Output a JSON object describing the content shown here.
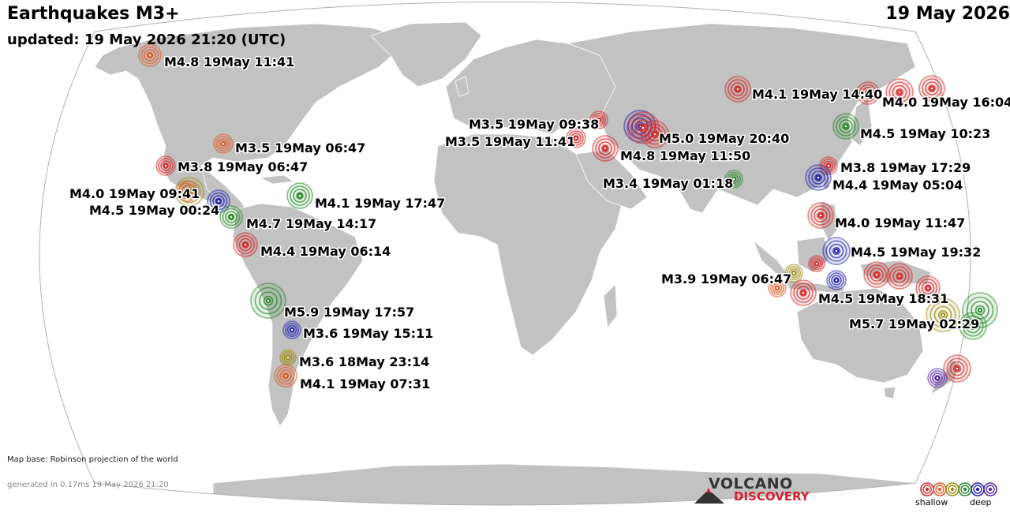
{
  "header": {
    "title": "Earthquakes M3+",
    "date": "19 May 2026",
    "updated": "updated: 19 May 2026 21:20 (UTC)"
  },
  "footer": {
    "map_base": "Map base: Robinson projection of the world",
    "generated": "generated in 0.17ms 19 May 2026 21:20"
  },
  "logo": {
    "top": "VOLCANO",
    "bottom": "DISCOVERY"
  },
  "legend": {
    "shallow": "shallow",
    "deep": "deep",
    "colors": [
      "#d42a2a",
      "#e05a2a",
      "#9a8a10",
      "#2a8a2a",
      "#2424b0",
      "#5a2aa0"
    ]
  },
  "colors": {
    "land": "#c2c2c2",
    "ocean": "#ffffff",
    "border": "#ffffff",
    "red": "#d42a2a",
    "orange": "#e05a2a",
    "olive": "#9a8a10",
    "green": "#2a8a2a",
    "blue": "#2424b0",
    "purple": "#5a2aa0"
  },
  "quakes": [
    {
      "label": "M4.8 19May 11:41",
      "depth_color": "orange"
    },
    {
      "label": "M3.5 19May 06:47",
      "depth_color": "orange"
    },
    {
      "label": "M3.8 19May 06:47",
      "depth_color": "red"
    },
    {
      "label": "M4.0 19May 09:41",
      "depth_color": "orange"
    },
    {
      "label": "M4.5 19May 00:24",
      "depth_color": "blue"
    },
    {
      "label": "M4.1 19May 17:47",
      "depth_color": "green"
    },
    {
      "label": "M4.7 19May 14:17",
      "depth_color": "green"
    },
    {
      "label": "M4.4 19May 06:14",
      "depth_color": "red"
    },
    {
      "label": "M5.9 19May 17:57",
      "depth_color": "green"
    },
    {
      "label": "M3.6 19May 15:11",
      "depth_color": "blue"
    },
    {
      "label": "M3.6 18May 23:14",
      "depth_color": "olive"
    },
    {
      "label": "M4.1 19May 07:31",
      "depth_color": "orange"
    },
    {
      "label": "M3.5 19May 09:38",
      "depth_color": "red"
    },
    {
      "label": "M3.5 19May 11:41",
      "depth_color": "red"
    },
    {
      "label": "M5.0 19May 20:40",
      "depth_color": "red"
    },
    {
      "label": "M4.8 19May 11:50",
      "depth_color": "red"
    },
    {
      "label": "M3.4 19May 01:18",
      "depth_color": "green"
    },
    {
      "label": "M4.1 19May 14:40",
      "depth_color": "red"
    },
    {
      "label": "M4.0 19May 16:04",
      "depth_color": "red"
    },
    {
      "label": "M4.5 19May 10:23",
      "depth_color": "green"
    },
    {
      "label": "M3.8 19May 17:29",
      "depth_color": "red"
    },
    {
      "label": "M4.4 19May 05:04",
      "depth_color": "blue"
    },
    {
      "label": "M4.0 19May 11:47",
      "depth_color": "red"
    },
    {
      "label": "M4.5 19May 19:32",
      "depth_color": "blue"
    },
    {
      "label": "M3.9 19May 06:47",
      "depth_color": "orange"
    },
    {
      "label": "M4.5 19May 18:31",
      "depth_color": "red"
    },
    {
      "label": "M5.7 19May 02:29",
      "depth_color": "olive"
    }
  ],
  "unlabeled_quakes": [
    {
      "depth_color": "red"
    },
    {
      "depth_color": "red"
    },
    {
      "depth_color": "olive"
    },
    {
      "depth_color": "red"
    },
    {
      "depth_color": "red"
    },
    {
      "depth_color": "red"
    },
    {
      "depth_color": "red"
    },
    {
      "depth_color": "green"
    },
    {
      "depth_color": "green"
    },
    {
      "depth_color": "red"
    },
    {
      "depth_color": "purple"
    },
    {
      "depth_color": "olive"
    },
    {
      "depth_color": "blue"
    },
    {
      "depth_color": "red"
    },
    {
      "depth_color": "blue"
    }
  ]
}
